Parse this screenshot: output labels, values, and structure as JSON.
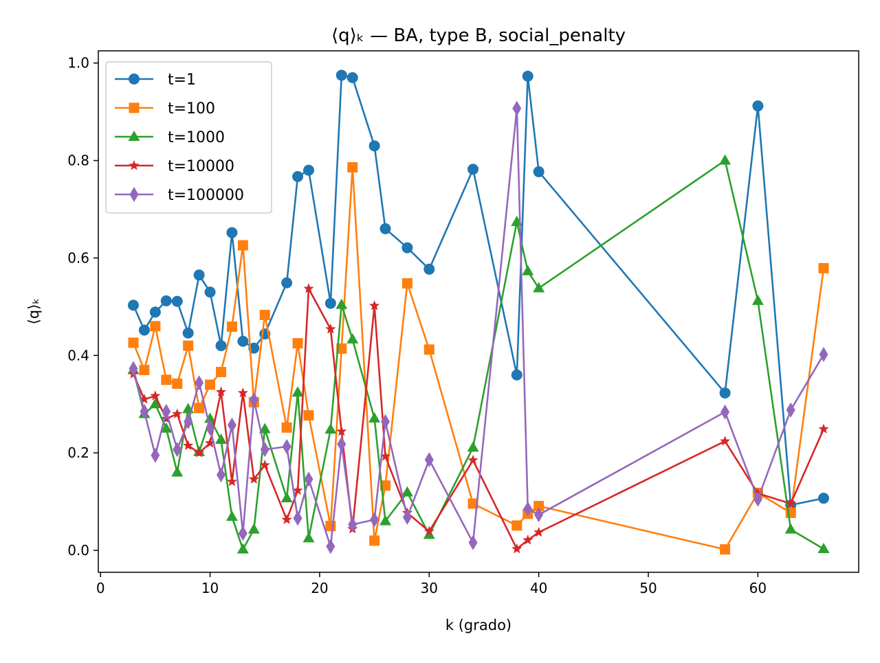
{
  "chart_data": {
    "type": "line",
    "title": "⟨q⟩ₖ — BA, type B, social_penalty",
    "xlabel": "k (grado)",
    "ylabel": "⟨q⟩ₖ",
    "xlim": [
      -0.2,
      69.2
    ],
    "ylim": [
      -0.045,
      1.025
    ],
    "xticks": [
      0,
      10,
      20,
      30,
      40,
      50,
      60
    ],
    "yticks": [
      0.0,
      0.2,
      0.4,
      0.6,
      0.8,
      1.0
    ],
    "xtick_labels": [
      "0",
      "10",
      "20",
      "30",
      "40",
      "50",
      "60"
    ],
    "ytick_labels": [
      "0.0",
      "0.2",
      "0.4",
      "0.6",
      "0.8",
      "1.0"
    ],
    "grid": false,
    "legend_position": "upper-left",
    "x": [
      3,
      4,
      5,
      6,
      7,
      8,
      9,
      10,
      11,
      12,
      13,
      14,
      15,
      17,
      18,
      19,
      21,
      22,
      23,
      25,
      26,
      28,
      30,
      34,
      38,
      39,
      40,
      57,
      60,
      63,
      66
    ],
    "series": [
      {
        "name": "t=1",
        "color": "#1f77b4",
        "marker": "circle",
        "values": [
          0.503,
          0.452,
          0.489,
          0.512,
          0.511,
          0.446,
          0.565,
          0.53,
          0.42,
          0.652,
          0.429,
          0.415,
          0.444,
          0.549,
          0.767,
          0.78,
          0.507,
          0.975,
          0.97,
          0.83,
          0.66,
          0.621,
          0.577,
          0.782,
          0.36,
          0.973,
          0.777,
          0.323,
          0.912,
          0.093,
          0.107
        ]
      },
      {
        "name": "t=100",
        "color": "#ff7f0e",
        "marker": "square",
        "values": [
          0.426,
          0.37,
          0.46,
          0.35,
          0.342,
          0.42,
          0.292,
          0.34,
          0.366,
          0.459,
          0.626,
          0.304,
          0.483,
          0.252,
          0.425,
          0.277,
          0.05,
          0.414,
          0.786,
          0.02,
          0.133,
          0.548,
          0.412,
          0.096,
          0.051,
          0.075,
          0.091,
          0.002,
          0.118,
          0.077,
          0.579
        ]
      },
      {
        "name": "t=1000",
        "color": "#2ca02c",
        "marker": "triangle",
        "values": [
          0.37,
          0.28,
          0.3,
          0.25,
          0.16,
          0.29,
          0.202,
          0.27,
          0.227,
          0.069,
          0.002,
          0.043,
          0.249,
          0.107,
          0.324,
          0.025,
          0.248,
          0.504,
          0.433,
          0.271,
          0.06,
          0.119,
          0.032,
          0.211,
          0.674,
          0.573,
          0.538,
          0.8,
          0.512,
          0.043,
          0.003
        ]
      },
      {
        "name": "t=10000",
        "color": "#d62728",
        "marker": "star",
        "values": [
          0.362,
          0.31,
          0.317,
          0.27,
          0.28,
          0.215,
          0.2,
          0.22,
          0.325,
          0.141,
          0.323,
          0.146,
          0.175,
          0.063,
          0.123,
          0.537,
          0.454,
          0.244,
          0.044,
          0.502,
          0.193,
          0.077,
          0.039,
          0.185,
          0.003,
          0.021,
          0.037,
          0.224,
          0.117,
          0.096,
          0.249
        ]
      },
      {
        "name": "t=100000",
        "color": "#9467bd",
        "marker": "diamond",
        "values": [
          0.373,
          0.285,
          0.195,
          0.285,
          0.207,
          0.264,
          0.344,
          0.251,
          0.155,
          0.257,
          0.035,
          0.309,
          0.207,
          0.213,
          0.066,
          0.146,
          0.008,
          0.218,
          0.053,
          0.063,
          0.264,
          0.068,
          0.186,
          0.016,
          0.907,
          0.085,
          0.073,
          0.284,
          0.105,
          0.288,
          0.402
        ]
      }
    ]
  }
}
